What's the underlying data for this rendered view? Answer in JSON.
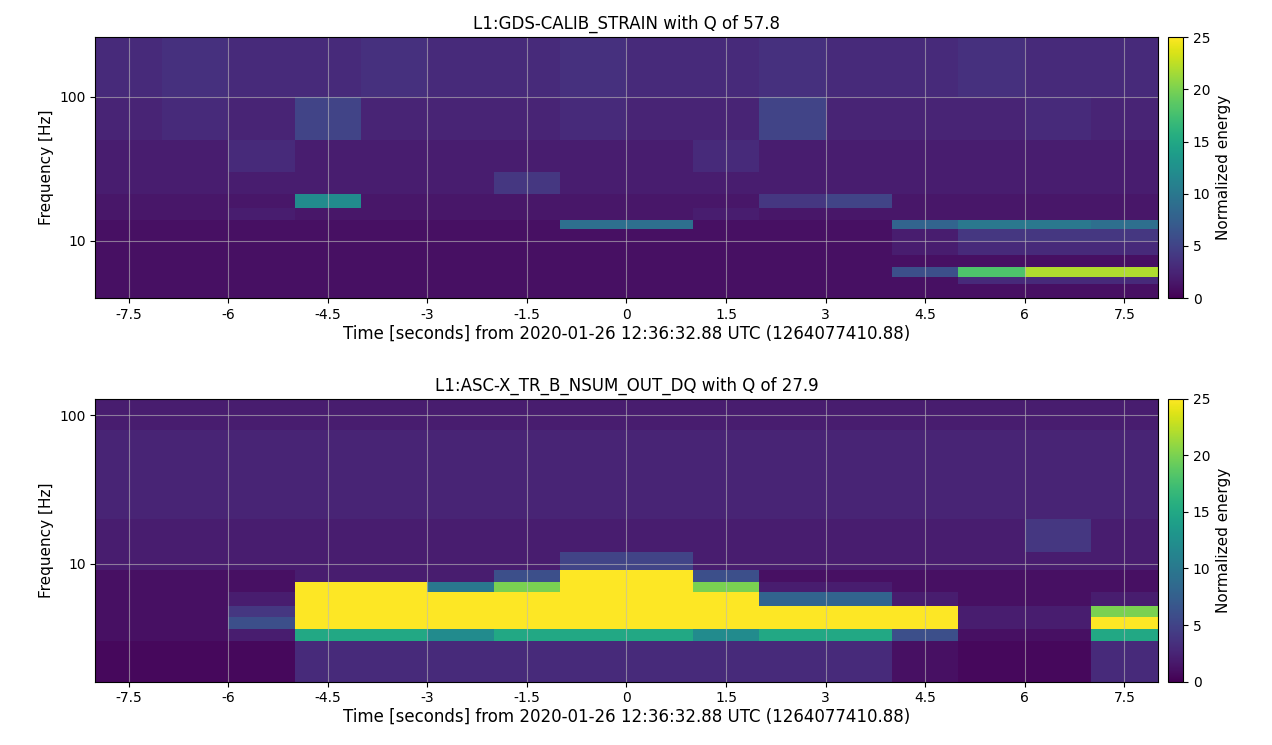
{
  "chart_data": [
    {
      "type": "heatmap",
      "title": "L1:GDS-CALIB_STRAIN with Q of 57.8",
      "x_label": "Time [seconds] from 2020-01-26 12:36:32.88 UTC (1264077410.88)",
      "y_label": "Frequency [Hz]",
      "log": "y",
      "grid": true,
      "xlim": [
        -8,
        8
      ],
      "xticks": [
        -7.5,
        -6,
        -4.5,
        -3,
        -1.5,
        0,
        1.5,
        3,
        4.5,
        6,
        7.5
      ],
      "ylim": [
        4,
        260
      ],
      "yticks": [
        10,
        100
      ],
      "colorbar_label": "Normalized energy",
      "colorbar_range": [
        0,
        25
      ],
      "colorbar_ticks": [
        0,
        5,
        10,
        15,
        20,
        25
      ],
      "time_bins": [
        -8,
        -7,
        -6,
        -5,
        -4,
        -3,
        -2,
        -1,
        0,
        1,
        2,
        3,
        4,
        5,
        6,
        7,
        8
      ],
      "freq_bins": [
        4,
        5,
        5.6,
        6.6,
        8,
        10,
        12,
        14,
        17,
        21,
        30,
        50,
        100,
        260
      ],
      "cells": [
        [
          1,
          1,
          1,
          1,
          1,
          1,
          1,
          1,
          1,
          1,
          1,
          1,
          1,
          1,
          1,
          1
        ],
        [
          1,
          1,
          1,
          1,
          1,
          1,
          1,
          1,
          1,
          1,
          1,
          1,
          1,
          3,
          3,
          3
        ],
        [
          1,
          1,
          1,
          1,
          1,
          1,
          1,
          1,
          1,
          1,
          1,
          1,
          6,
          18,
          22,
          22
        ],
        [
          1,
          1,
          1,
          1,
          1,
          1,
          1,
          1,
          1,
          1,
          1,
          1,
          1,
          1,
          1,
          1
        ],
        [
          1,
          1,
          1,
          1,
          1,
          1,
          1,
          1,
          1,
          1,
          1,
          1,
          2,
          3,
          3,
          3
        ],
        [
          1,
          1,
          1,
          1,
          1,
          1,
          1,
          1,
          1,
          1,
          1,
          1,
          2,
          4,
          4,
          4
        ],
        [
          1,
          1,
          1,
          1,
          1,
          1,
          1,
          9,
          9,
          1,
          1,
          1,
          8,
          10,
          10,
          9
        ],
        [
          1.5,
          1.5,
          2,
          1.5,
          1.5,
          1.5,
          1.5,
          1.5,
          1.5,
          2,
          1.5,
          1.5,
          1.5,
          1.5,
          1.5,
          1.5
        ],
        [
          1.5,
          1.5,
          1.5,
          12,
          1.5,
          1.5,
          1.5,
          1.5,
          1.5,
          1.5,
          4,
          5,
          1.5,
          1.5,
          1.5,
          1.5
        ],
        [
          2,
          2,
          2,
          2,
          2,
          2,
          4,
          2,
          2,
          2,
          2,
          2,
          2,
          2,
          2,
          2
        ],
        [
          2,
          2,
          3,
          2,
          2,
          2,
          2,
          2,
          2,
          3,
          2,
          2,
          2,
          2,
          2,
          2
        ],
        [
          2.5,
          3,
          2.5,
          5,
          2.5,
          2.5,
          2.5,
          3,
          2.5,
          2.5,
          5,
          2.5,
          2.5,
          2.5,
          3,
          2.5
        ],
        [
          3,
          3.5,
          3,
          3,
          3.5,
          3,
          3,
          3.5,
          3,
          3,
          3.5,
          3,
          3,
          3.5,
          3,
          3
        ]
      ]
    },
    {
      "type": "heatmap",
      "title": "L1:ASC-X_TR_B_NSUM_OUT_DQ with Q of 27.9",
      "x_label": "Time [seconds] from 2020-01-26 12:36:32.88 UTC (1264077410.88)",
      "y_label": "Frequency [Hz]",
      "log": "y",
      "grid": true,
      "xlim": [
        -8,
        8
      ],
      "xticks": [
        -7.5,
        -6,
        -4.5,
        -3,
        -1.5,
        0,
        1.5,
        3,
        4.5,
        6,
        7.5
      ],
      "ylim": [
        1.6,
        130
      ],
      "yticks": [
        10,
        100
      ],
      "colorbar_label": "Normalized energy",
      "colorbar_range": [
        0,
        25
      ],
      "colorbar_ticks": [
        0,
        5,
        10,
        15,
        20,
        25
      ],
      "time_bins": [
        -8,
        -7,
        -6,
        -5,
        -4,
        -3,
        -2,
        -1,
        0,
        1,
        2,
        3,
        4,
        5,
        6,
        7,
        8
      ],
      "freq_bins": [
        1.6,
        3,
        3.6,
        4.4,
        5.2,
        6.4,
        7.5,
        9,
        12,
        20,
        40,
        80,
        130
      ],
      "cells": [
        [
          0.5,
          0.5,
          0.5,
          3,
          3,
          3,
          3,
          3,
          3,
          3,
          3,
          3,
          1,
          0.5,
          0.5,
          3
        ],
        [
          1,
          1,
          2,
          15,
          15,
          12,
          15,
          15,
          15,
          12,
          15,
          15,
          6,
          1,
          1,
          15
        ],
        [
          1,
          1,
          6,
          40,
          40,
          40,
          40,
          40,
          40,
          40,
          40,
          40,
          30,
          2,
          2,
          30
        ],
        [
          1,
          1,
          4,
          40,
          40,
          40,
          40,
          40,
          40,
          40,
          40,
          40,
          25,
          2,
          2,
          20
        ],
        [
          1,
          1,
          2,
          35,
          35,
          35,
          40,
          40,
          40,
          40,
          8,
          8,
          2,
          1,
          1,
          2
        ],
        [
          1,
          1,
          1,
          30,
          30,
          10,
          20,
          40,
          40,
          20,
          2,
          2,
          1,
          1,
          1,
          1
        ],
        [
          1,
          1,
          1,
          2,
          2,
          2,
          6,
          30,
          30,
          6,
          1,
          1,
          1,
          1,
          1,
          1
        ],
        [
          2,
          2,
          2,
          2,
          2,
          2,
          2,
          5,
          5,
          2,
          2,
          2,
          2,
          2,
          2,
          2
        ],
        [
          2,
          2,
          2,
          2,
          2,
          2,
          2,
          2,
          2,
          2,
          2,
          2,
          2,
          2,
          4,
          2
        ],
        [
          2.5,
          2.5,
          2.5,
          2.5,
          2.5,
          2.5,
          2.5,
          2.5,
          2.5,
          2.5,
          2.5,
          2.5,
          2.5,
          2.5,
          2.5,
          2.5
        ],
        [
          2.5,
          2.5,
          2.5,
          2.5,
          2.5,
          2.5,
          2.5,
          2.5,
          2.5,
          2.5,
          2.5,
          2.5,
          2.5,
          2.5,
          2.5,
          2.5
        ],
        [
          2,
          2,
          2,
          2,
          2,
          2,
          2,
          2,
          2,
          2,
          2,
          2,
          2,
          2,
          2,
          2
        ]
      ]
    }
  ]
}
